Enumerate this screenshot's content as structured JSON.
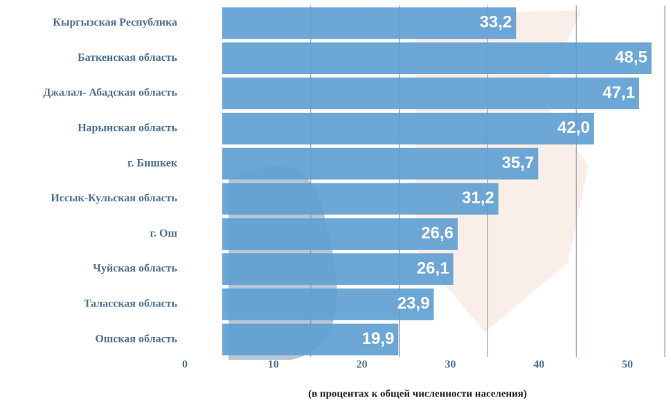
{
  "chart_data": {
    "type": "bar",
    "orientation": "horizontal",
    "categories": [
      "Кыргызская Республика",
      "Баткенская область",
      "Джалал- Абадская область",
      "Нарынская область",
      "г. Бишкек",
      "Иссык-Кульская область",
      "г. Ош",
      "Чуйская область",
      "Таласская область",
      "Ошская область"
    ],
    "values": [
      33.2,
      48.5,
      47.1,
      42.0,
      35.7,
      31.2,
      26.6,
      26.1,
      23.9,
      19.9
    ],
    "value_labels": [
      "33,2",
      "48,5",
      "47,1",
      "42,0",
      "35,7",
      "31,2",
      "26,6",
      "26,1",
      "23,9",
      "19,9"
    ],
    "color": "#5f9fd2",
    "xlim": [
      0,
      50
    ],
    "xticks": [
      0,
      10,
      20,
      30,
      40,
      50
    ],
    "grid": true,
    "xlabel": "(в процентах к общей численности населения)"
  }
}
